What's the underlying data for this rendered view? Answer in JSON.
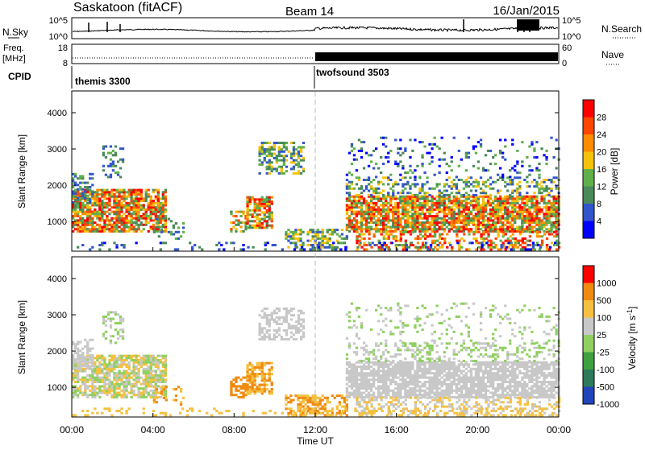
{
  "header": {
    "station": "Saskatoon (fitACF)",
    "beam": "Beam 14",
    "date": "16/Jan/2015"
  },
  "panels": {
    "nsky": {
      "left_label": "N.Sky",
      "right_label": "N.Search",
      "tick_top": "10^5",
      "tick_bottom": "10^0"
    },
    "freq": {
      "left_label_1": "Freq.",
      "left_label_2": "[MHz]",
      "left_tick_top": "18",
      "left_tick_bottom": "8",
      "right_label": "Nave",
      "right_tick_top": "60",
      "right_tick_bottom": "0"
    },
    "cpid": {
      "label": "CPID",
      "modes": [
        {
          "name": "themis 3300",
          "start_hour": 0
        },
        {
          "name": "twofsound 3503",
          "start_hour": 12
        }
      ]
    }
  },
  "chart_data": [
    {
      "type": "heatmap",
      "quantity": "power",
      "ylabel": "Slant Range [km]",
      "xlabel": "Time UT",
      "xlim": [
        0,
        24
      ],
      "ylim": [
        180,
        4600
      ],
      "yticks": [
        1000,
        2000,
        3000,
        4000
      ],
      "colorbar_label": "Power [dB]",
      "colorbar_ticks": [
        4,
        8,
        12,
        16,
        20,
        24,
        28
      ],
      "colorbar_range": [
        0,
        30
      ],
      "colors": [
        "#0000ff",
        "#3355cc",
        "#4a8a5a",
        "#5fb04a",
        "#f5c20c",
        "#ff8c00",
        "#ff4500",
        "#ff0000"
      ]
    },
    {
      "type": "heatmap",
      "quantity": "velocity",
      "ylabel": "Slant Range [km]",
      "xlabel": "Time UT",
      "xlim": [
        0,
        24
      ],
      "ylim": [
        180,
        4600
      ],
      "yticks": [
        1000,
        2000,
        3000,
        4000
      ],
      "xticks": [
        "00:00",
        "04:00",
        "08:00",
        "12:00",
        "16:00",
        "20:00",
        "00:00"
      ],
      "colorbar_label": "Velocity [m s^-1]",
      "colorbar_ticks": [
        "1000",
        "500",
        "100",
        "25",
        "-25",
        "-100",
        "-500",
        "-1000"
      ],
      "colors": [
        "#2244bb",
        "#2c7a5a",
        "#3fa040",
        "#8fd060",
        "#c8c8c8",
        "#f5c040",
        "#f08a10",
        "#ff0000"
      ]
    }
  ],
  "axes": {
    "time_label": "Time UT",
    "x_ticks": [
      "00:00",
      "04:00",
      "08:00",
      "12:00",
      "16:00",
      "20:00",
      "00:00"
    ]
  }
}
